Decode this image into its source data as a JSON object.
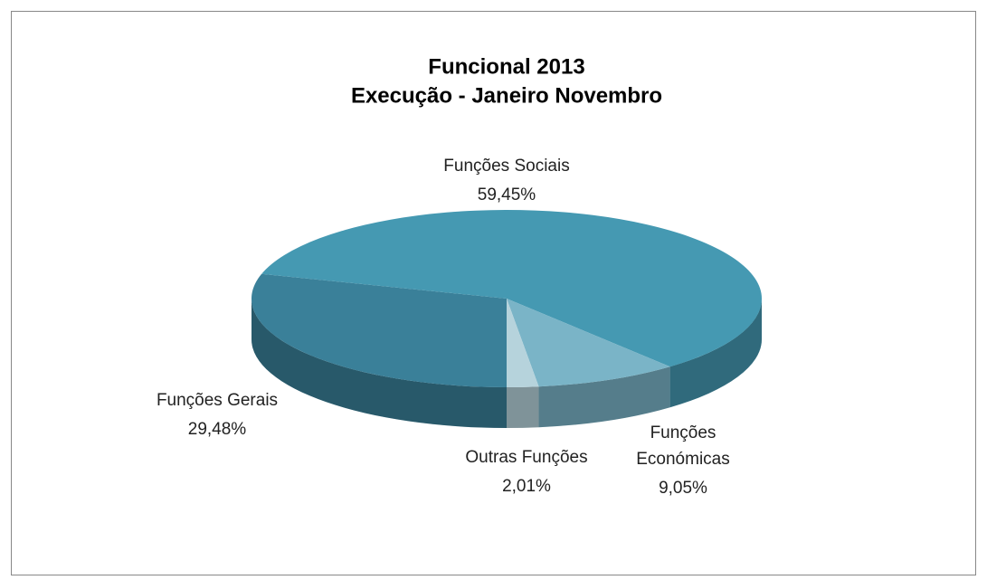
{
  "chart_data": {
    "type": "pie3d",
    "title": "Funcional 2013",
    "subtitle": "Execução - Janeiro Novembro",
    "categories": [
      "Funções Gerais",
      "Funções Sociais",
      "Funções Económicas",
      "Outras Funções"
    ],
    "values": [
      29.48,
      59.45,
      9.05,
      2.01
    ],
    "value_labels": [
      "29,48%",
      "59,45%",
      "9,05%",
      "2,01%"
    ],
    "colors": [
      "#3a8099",
      "#4599b2",
      "#7ab4c7",
      "#b6d3dc"
    ]
  }
}
